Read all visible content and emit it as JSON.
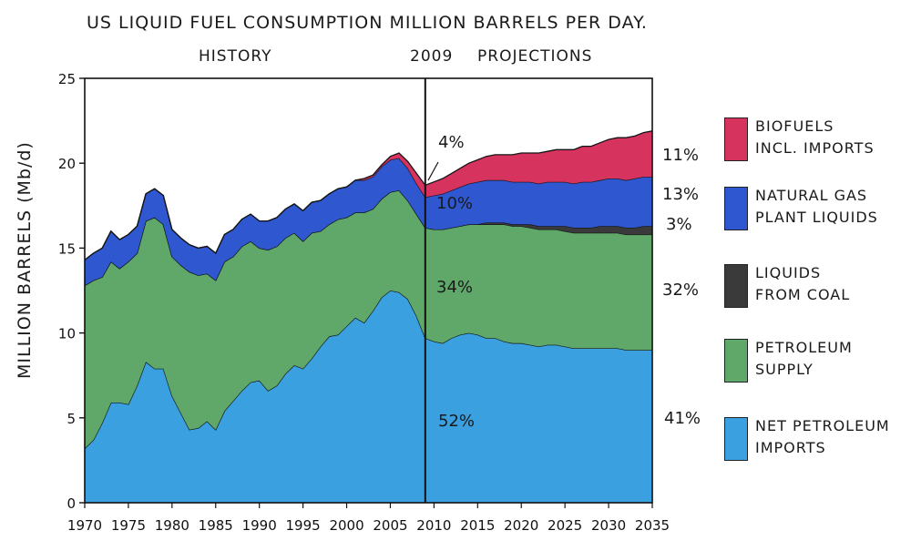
{
  "title": "US LIQUID FUEL CONSUMPTION MILLION BARRELS PER DAY.",
  "labels": {
    "history": "HISTORY",
    "divider_year": "2009",
    "projections": "PROJECTIONS"
  },
  "colors": {
    "net_petroleum_imports": "#3aa0e0",
    "petroleum_supply": "#5fa86a",
    "liquids_from_coal": "#3a3a3a",
    "natural_gas_plant_liquids": "#2f57cf",
    "biofuels": "#d6335f"
  },
  "inline_pcts": {
    "biofuels_2009": "4%",
    "ngpl_2009": "10%",
    "petroleum_2009": "34%",
    "imports_2009": "52%"
  },
  "right_pcts": {
    "biofuels": "11%",
    "ngpl": "13%",
    "coal": "3%",
    "petroleum": "32%",
    "imports": "41%"
  },
  "legend": [
    {
      "key": "biofuels",
      "label": "BIOFUELS\nINCL. IMPORTS",
      "color": "#d6335f"
    },
    {
      "key": "ngpl",
      "label": "NATURAL GAS\nPLANT LIQUIDS",
      "color": "#2f57cf"
    },
    {
      "key": "coal",
      "label": "LIQUIDS\nFROM COAL",
      "color": "#3a3a3a"
    },
    {
      "key": "petroleum",
      "label": "PETROLEUM\nSUPPLY",
      "color": "#5fa86a"
    },
    {
      "key": "imports",
      "label": "NET PETROLEUM\nIMPORTS",
      "color": "#3aa0e0"
    }
  ],
  "chart_data": {
    "type": "area",
    "title": "US LIQUID FUEL CONSUMPTION MILLION BARRELS PER DAY.",
    "ylabel": "MILLION BARRELS (Mb/d)",
    "xlabel": "",
    "xlim": [
      1970,
      2035
    ],
    "ylim": [
      0,
      25
    ],
    "x_ticks": [
      1970,
      1975,
      1980,
      1985,
      1990,
      1995,
      2000,
      2005,
      2010,
      2015,
      2020,
      2025,
      2030,
      2035
    ],
    "y_ticks": [
      0,
      5,
      10,
      15,
      20,
      25
    ],
    "stacked": true,
    "divider_x": 2009,
    "x": [
      1970,
      1971,
      1972,
      1973,
      1974,
      1975,
      1976,
      1977,
      1978,
      1979,
      1980,
      1981,
      1982,
      1983,
      1984,
      1985,
      1986,
      1987,
      1988,
      1989,
      1990,
      1991,
      1992,
      1993,
      1994,
      1995,
      1996,
      1997,
      1998,
      1999,
      2000,
      2001,
      2002,
      2003,
      2004,
      2005,
      2006,
      2007,
      2008,
      2009,
      2010,
      2011,
      2012,
      2013,
      2014,
      2015,
      2016,
      2017,
      2018,
      2019,
      2020,
      2021,
      2022,
      2023,
      2024,
      2025,
      2026,
      2027,
      2028,
      2029,
      2030,
      2031,
      2032,
      2033,
      2034,
      2035
    ],
    "series": [
      {
        "name": "NET PETROLEUM IMPORTS",
        "values": [
          3.2,
          3.7,
          4.7,
          5.9,
          5.9,
          5.8,
          6.9,
          8.3,
          7.9,
          7.9,
          6.3,
          5.3,
          4.3,
          4.4,
          4.8,
          4.3,
          5.4,
          6.0,
          6.6,
          7.1,
          7.2,
          6.6,
          6.9,
          7.6,
          8.1,
          7.9,
          8.5,
          9.2,
          9.8,
          9.9,
          10.4,
          10.9,
          10.6,
          11.3,
          12.1,
          12.5,
          12.4,
          12.0,
          11.0,
          9.7,
          9.5,
          9.4,
          9.7,
          9.9,
          10.0,
          9.9,
          9.7,
          9.7,
          9.5,
          9.4,
          9.4,
          9.3,
          9.2,
          9.3,
          9.3,
          9.2,
          9.1,
          9.1,
          9.1,
          9.1,
          9.1,
          9.1,
          9.0,
          9.0,
          9.0,
          9.0
        ]
      },
      {
        "name": "PETROLEUM SUPPLY",
        "values": [
          9.6,
          9.4,
          8.6,
          8.3,
          7.9,
          8.4,
          7.8,
          8.3,
          8.9,
          8.5,
          8.2,
          8.7,
          9.3,
          9.0,
          8.7,
          8.8,
          8.8,
          8.5,
          8.5,
          8.3,
          7.8,
          8.3,
          8.2,
          8.0,
          7.8,
          7.5,
          7.4,
          6.8,
          6.6,
          6.8,
          6.4,
          6.2,
          6.5,
          6.0,
          5.8,
          5.8,
          6.0,
          5.8,
          6.0,
          6.5,
          6.6,
          6.7,
          6.5,
          6.4,
          6.4,
          6.5,
          6.7,
          6.7,
          6.9,
          6.9,
          6.9,
          6.9,
          6.9,
          6.8,
          6.8,
          6.8,
          6.8,
          6.8,
          6.8,
          6.8,
          6.8,
          6.8,
          6.8,
          6.8,
          6.8,
          6.8
        ]
      },
      {
        "name": "LIQUIDS FROM COAL",
        "values": [
          0,
          0,
          0,
          0,
          0,
          0,
          0,
          0,
          0,
          0,
          0,
          0,
          0,
          0,
          0,
          0,
          0,
          0,
          0,
          0,
          0,
          0,
          0,
          0,
          0,
          0,
          0,
          0,
          0,
          0,
          0,
          0,
          0,
          0,
          0,
          0,
          0,
          0,
          0,
          0,
          0,
          0,
          0,
          0,
          0,
          0,
          0.1,
          0.1,
          0.1,
          0.1,
          0.1,
          0.2,
          0.2,
          0.2,
          0.2,
          0.3,
          0.3,
          0.3,
          0.3,
          0.4,
          0.4,
          0.4,
          0.4,
          0.4,
          0.5,
          0.5
        ]
      },
      {
        "name": "NATURAL GAS PLANT LIQUIDS",
        "values": [
          1.5,
          1.6,
          1.7,
          1.8,
          1.7,
          1.6,
          1.6,
          1.6,
          1.7,
          1.7,
          1.6,
          1.6,
          1.6,
          1.6,
          1.6,
          1.6,
          1.6,
          1.6,
          1.6,
          1.6,
          1.6,
          1.7,
          1.7,
          1.7,
          1.7,
          1.8,
          1.8,
          1.8,
          1.8,
          1.8,
          1.8,
          1.9,
          1.9,
          1.9,
          1.9,
          1.9,
          1.9,
          1.9,
          1.8,
          1.8,
          2.0,
          2.1,
          2.2,
          2.3,
          2.4,
          2.5,
          2.5,
          2.5,
          2.5,
          2.5,
          2.5,
          2.5,
          2.5,
          2.6,
          2.6,
          2.6,
          2.6,
          2.7,
          2.7,
          2.7,
          2.8,
          2.8,
          2.8,
          2.9,
          2.9,
          2.9
        ]
      },
      {
        "name": "BIOFUELS INCL. IMPORTS",
        "values": [
          0,
          0,
          0,
          0,
          0,
          0,
          0,
          0,
          0,
          0,
          0,
          0,
          0,
          0,
          0,
          0,
          0,
          0,
          0,
          0,
          0,
          0,
          0,
          0,
          0,
          0,
          0,
          0,
          0,
          0,
          0,
          0,
          0.1,
          0.1,
          0.1,
          0.2,
          0.3,
          0.4,
          0.6,
          0.7,
          0.8,
          0.9,
          1.0,
          1.1,
          1.2,
          1.3,
          1.4,
          1.5,
          1.5,
          1.6,
          1.7,
          1.7,
          1.8,
          1.8,
          1.9,
          1.9,
          2.0,
          2.1,
          2.1,
          2.2,
          2.3,
          2.4,
          2.5,
          2.5,
          2.6,
          2.7
        ]
      }
    ],
    "legend_position": "right"
  }
}
